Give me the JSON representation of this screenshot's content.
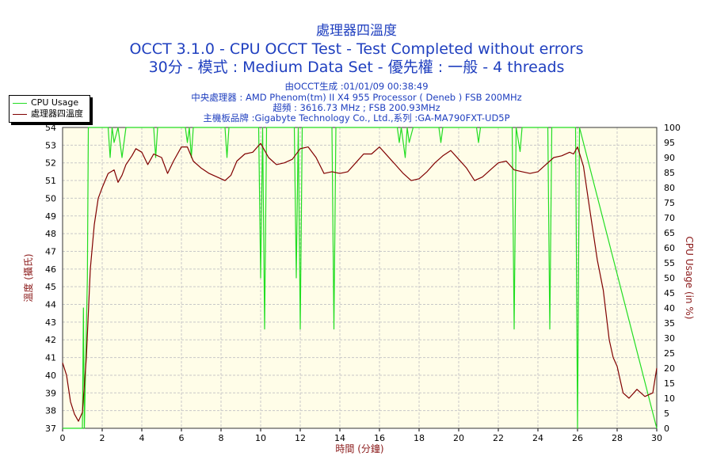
{
  "header": {
    "title_line1": "處理器四溫度",
    "title_line2": "OCCT 3.1.0 - CPU OCCT Test - Test Completed without errors",
    "title_line3": "30分 - 模式 : Medium Data Set - 優先權 : 一般 - 4 threads",
    "info_generated": "由OCCT生成 :01/01/09 00:38:49",
    "info_cpu": "中央處理器 : AMD Phenom(tm) II X4 955 Processor ( Deneb ) FSB 200MHz",
    "info_freq": "超頻 : 3616.73 MHz ; FSB 200.93MHz",
    "info_board": "主機板品牌 :Gigabyte Technology Co., Ltd.,系列 :GA-MA790FXT-UD5P"
  },
  "colors": {
    "title": "#1f3fbf",
    "plot_background": "#fffde8",
    "grid": "#c8c8c8",
    "temperature": "#800000",
    "cpu_usage": "#22dd22",
    "axis_label": "#8b1a1a"
  },
  "chart_data": {
    "type": "line",
    "xlabel": "時間 (分鐘)",
    "ylabel_left": "溫度 (攝氏)",
    "ylabel_right": "CPU Usage (in %)",
    "xlim": [
      0,
      30
    ],
    "ylim_left": [
      37,
      54
    ],
    "ylim_right": [
      0,
      100
    ],
    "x_ticks": [
      "0",
      "2",
      "4",
      "6",
      "8",
      "10",
      "12",
      "14",
      "16",
      "18",
      "20",
      "22",
      "24",
      "26",
      "28",
      "30"
    ],
    "y_left_ticks": [
      "37",
      "38",
      "39",
      "40",
      "41",
      "42",
      "43",
      "44",
      "45",
      "46",
      "47",
      "48",
      "49",
      "50",
      "51",
      "52",
      "53",
      "54"
    ],
    "y_right_ticks": [
      "0",
      "5",
      "10",
      "15",
      "20",
      "25",
      "30",
      "35",
      "40",
      "45",
      "50",
      "55",
      "60",
      "65",
      "70",
      "75",
      "80",
      "85",
      "90",
      "95",
      "100"
    ],
    "grid": true,
    "legend_position": "top-left",
    "series": [
      {
        "name": "CPU Usage",
        "axis": "right",
        "x": [
          0,
          1.0,
          1.05,
          1.1,
          1.25,
          1.3,
          1.4,
          2.3,
          2.4,
          2.5,
          2.6,
          2.8,
          3.0,
          3.2,
          4.6,
          4.7,
          4.8,
          6.2,
          6.3,
          6.4,
          6.5,
          6.6,
          6.7,
          8.2,
          8.3,
          8.4,
          9.9,
          10.0,
          10.1,
          10.2,
          10.3,
          11.7,
          11.8,
          11.9,
          12.0,
          12.1,
          13.6,
          13.7,
          13.8,
          13.9,
          16.9,
          17.0,
          17.1,
          17.3,
          17.4,
          17.5,
          17.7,
          17.8,
          19.0,
          19.1,
          19.2,
          20.9,
          21.0,
          21.1,
          22.7,
          22.8,
          22.9,
          23.1,
          23.2,
          23.3,
          24.5,
          24.6,
          24.7,
          25.9,
          26.0,
          26.1,
          30
        ],
        "values": [
          0,
          0,
          40,
          0,
          50,
          100,
          100,
          100,
          90,
          100,
          95,
          100,
          90,
          100,
          100,
          90,
          100,
          100,
          95,
          100,
          90,
          100,
          100,
          100,
          90,
          100,
          100,
          50,
          100,
          33,
          100,
          100,
          50,
          100,
          33,
          100,
          100,
          33,
          100,
          100,
          100,
          95,
          100,
          90,
          100,
          95,
          100,
          100,
          100,
          95,
          100,
          100,
          95,
          100,
          100,
          33,
          100,
          92,
          100,
          100,
          100,
          33,
          100,
          100,
          0,
          100,
          0
        ]
      },
      {
        "name": "處理器四溫度",
        "axis": "left",
        "x": [
          0,
          0.2,
          0.4,
          0.6,
          0.8,
          1.0,
          1.2,
          1.4,
          1.6,
          1.8,
          2.0,
          2.3,
          2.6,
          2.8,
          3.0,
          3.2,
          3.5,
          3.7,
          4.0,
          4.3,
          4.6,
          5.0,
          5.3,
          5.6,
          6.0,
          6.3,
          6.6,
          7.0,
          7.4,
          7.8,
          8.2,
          8.5,
          8.8,
          9.2,
          9.6,
          10.0,
          10.4,
          10.8,
          11.2,
          11.6,
          12.0,
          12.4,
          12.8,
          13.2,
          13.6,
          14.0,
          14.4,
          14.8,
          15.2,
          15.6,
          16.0,
          16.4,
          16.8,
          17.2,
          17.6,
          18.0,
          18.4,
          18.8,
          19.2,
          19.6,
          20.0,
          20.4,
          20.8,
          21.2,
          21.6,
          22.0,
          22.4,
          22.8,
          23.2,
          23.6,
          24.0,
          24.4,
          24.8,
          25.2,
          25.6,
          25.8,
          26.0,
          26.3,
          26.6,
          27.0,
          27.3,
          27.6,
          27.8,
          28.0,
          28.3,
          28.6,
          29.0,
          29.4,
          29.8,
          30.0
        ],
        "values": [
          40.7,
          40.0,
          38.5,
          37.8,
          37.4,
          37.9,
          41.0,
          46.0,
          48.5,
          50.0,
          50.6,
          51.4,
          51.6,
          50.9,
          51.3,
          51.9,
          52.4,
          52.8,
          52.6,
          51.9,
          52.5,
          52.3,
          51.4,
          52.1,
          52.9,
          52.9,
          52.1,
          51.7,
          51.4,
          51.2,
          51.0,
          51.3,
          52.1,
          52.5,
          52.6,
          53.1,
          52.3,
          51.9,
          52.0,
          52.2,
          52.8,
          52.9,
          52.3,
          51.4,
          51.5,
          51.4,
          51.5,
          52.0,
          52.5,
          52.5,
          52.9,
          52.4,
          51.9,
          51.4,
          51.0,
          51.1,
          51.5,
          52.0,
          52.4,
          52.7,
          52.2,
          51.7,
          51.0,
          51.2,
          51.6,
          52.0,
          52.1,
          51.6,
          51.5,
          51.4,
          51.5,
          51.9,
          52.3,
          52.4,
          52.6,
          52.5,
          52.9,
          51.8,
          49.5,
          46.5,
          44.8,
          42.0,
          41.0,
          40.5,
          39.0,
          38.7,
          39.2,
          38.8,
          39.0,
          40.4
        ]
      }
    ]
  }
}
